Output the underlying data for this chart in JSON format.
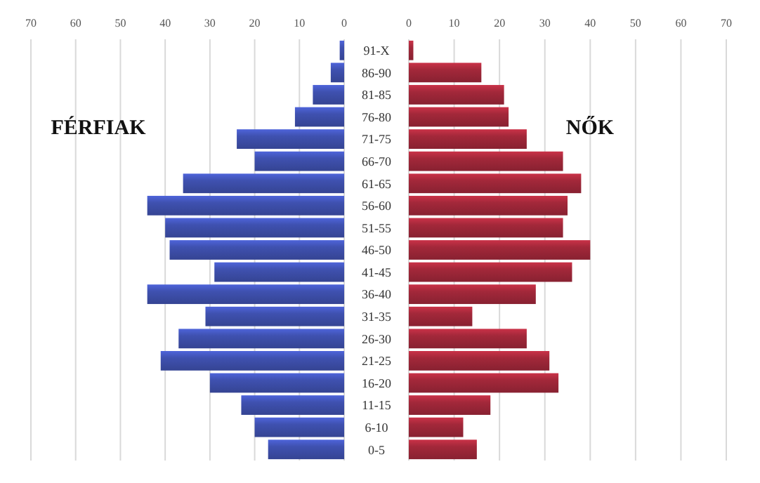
{
  "chart_data": [
    {
      "type": "bar",
      "orientation": "horizontal",
      "title": "FÉRFIAK",
      "categories": [
        "91-X",
        "86-90",
        "81-85",
        "76-80",
        "71-75",
        "66-70",
        "61-65",
        "56-60",
        "51-55",
        "46-50",
        "41-45",
        "36-40",
        "31-35",
        "26-30",
        "21-25",
        "16-20",
        "11-15",
        "6-10",
        "0-5"
      ],
      "values": [
        1,
        3,
        7,
        11,
        24,
        20,
        36,
        44,
        40,
        39,
        29,
        44,
        31,
        37,
        41,
        30,
        23,
        20,
        17
      ],
      "color": "#3f51b0",
      "xlim": [
        70,
        0
      ],
      "xticks": [
        70,
        60,
        50,
        40,
        30,
        20,
        10,
        0
      ],
      "grid": "x"
    },
    {
      "type": "bar",
      "orientation": "horizontal",
      "title": "NŐK",
      "categories": [
        "91-X",
        "86-90",
        "81-85",
        "76-80",
        "71-75",
        "66-70",
        "61-65",
        "56-60",
        "51-55",
        "46-50",
        "41-45",
        "36-40",
        "31-35",
        "26-30",
        "21-25",
        "16-20",
        "11-15",
        "6-10",
        "0-5"
      ],
      "values": [
        1,
        16,
        21,
        22,
        26,
        34,
        38,
        35,
        34,
        40,
        36,
        28,
        14,
        26,
        31,
        33,
        18,
        12,
        15
      ],
      "color": "#a3283a",
      "xlim": [
        0,
        70
      ],
      "xticks": [
        0,
        10,
        20,
        30,
        40,
        50,
        60,
        70
      ],
      "grid": "x",
      "tick_labels": "x"
    }
  ]
}
